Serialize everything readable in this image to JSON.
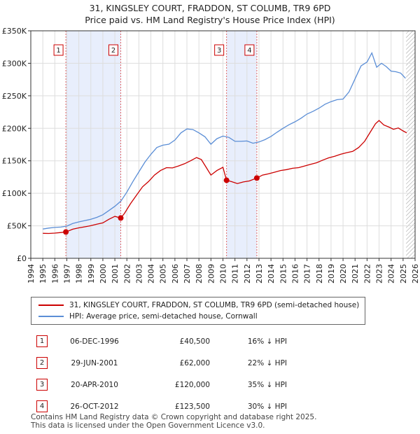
{
  "title": {
    "line1": "31, KINGSLEY COURT, FRADDON, ST COLUMB, TR9 6PD",
    "line2": "Price paid vs. HM Land Registry's House Price Index (HPI)"
  },
  "chart_data": {
    "type": "line",
    "title": "31, KINGSLEY COURT, FRADDON, ST COLUMB, TR9 6PD - Price paid vs. HM Land Registry's House Price Index (HPI)",
    "xlabel": "",
    "ylabel": "",
    "xlim": [
      1994,
      2026
    ],
    "ylim": [
      0,
      350000
    ],
    "grid": true,
    "x_ticks": [
      1994,
      1995,
      1996,
      1997,
      1998,
      1999,
      2000,
      2001,
      2002,
      2003,
      2004,
      2005,
      2006,
      2007,
      2008,
      2009,
      2010,
      2011,
      2012,
      2013,
      2014,
      2015,
      2016,
      2017,
      2018,
      2019,
      2020,
      2021,
      2022,
      2023,
      2024,
      2025,
      2026
    ],
    "x_tick_labels": [
      "1994",
      "1995",
      "1996",
      "1997",
      "1998",
      "1999",
      "2000",
      "2001",
      "2002",
      "2003",
      "2004",
      "2005",
      "2006",
      "2007",
      "2008",
      "2009",
      "2010",
      "2011",
      "2012",
      "2013",
      "2014",
      "2015",
      "2016",
      "2017",
      "2018",
      "2019",
      "2020",
      "2021",
      "2022",
      "2023",
      "2024",
      "2025",
      "2026"
    ],
    "y_ticks": [
      0,
      50000,
      100000,
      150000,
      200000,
      250000,
      300000,
      350000
    ],
    "y_tick_labels": [
      "£0",
      "£50K",
      "£100K",
      "£150K",
      "£200K",
      "£250K",
      "£300K",
      "£350K"
    ],
    "shaded_ranges": [
      [
        1996.92,
        2001.49
      ],
      [
        2010.3,
        2012.82
      ]
    ],
    "forecast_hatch_from": 2025.25,
    "series": [
      {
        "name": "31, KINGSLEY COURT, FRADDON, ST COLUMB, TR9 6PD (semi-detached house)",
        "color": "#cc0000",
        "x": [
          1995.0,
          1995.5,
          1996.0,
          1996.5,
          1996.92,
          1997.5,
          1998.0,
          1998.5,
          1999.0,
          1999.5,
          2000.0,
          2000.5,
          2001.0,
          2001.49,
          2001.8,
          2002.3,
          2002.8,
          2003.3,
          2003.8,
          2004.3,
          2004.8,
          2005.3,
          2005.8,
          2006.3,
          2006.8,
          2007.3,
          2007.8,
          2008.2,
          2008.6,
          2009.0,
          2009.5,
          2010.0,
          2010.3,
          2010.7,
          2011.2,
          2011.7,
          2012.2,
          2012.82,
          2013.3,
          2013.8,
          2014.3,
          2014.8,
          2015.3,
          2015.8,
          2016.3,
          2016.8,
          2017.3,
          2017.8,
          2018.3,
          2018.8,
          2019.3,
          2019.8,
          2020.3,
          2020.8,
          2021.3,
          2021.8,
          2022.3,
          2022.7,
          2023.0,
          2023.4,
          2023.8,
          2024.2,
          2024.6,
          2025.0,
          2025.3
        ],
        "values": [
          38500,
          38200,
          38800,
          39600,
          40500,
          44800,
          46800,
          48500,
          50200,
          52500,
          54500,
          60000,
          64500,
          62000,
          69000,
          84000,
          97000,
          110000,
          118000,
          128000,
          135000,
          139500,
          139000,
          142000,
          145500,
          150000,
          155000,
          152000,
          140000,
          128000,
          135000,
          140000,
          120000,
          118000,
          115000,
          117500,
          119000,
          123500,
          128000,
          130000,
          132500,
          135000,
          136500,
          138500,
          139500,
          142000,
          144500,
          147000,
          151000,
          154500,
          157000,
          160000,
          162500,
          164500,
          170500,
          180000,
          195000,
          207000,
          212000,
          205000,
          202000,
          198500,
          200500,
          196000,
          193000
        ]
      },
      {
        "name": "HPI: Average price, semi-detached house, Cornwall",
        "color": "#5b8ed6",
        "x": [
          1995.0,
          1995.5,
          1996.0,
          1996.5,
          1997.0,
          1997.5,
          1998.0,
          1998.5,
          1999.0,
          1999.5,
          2000.0,
          2000.5,
          2001.0,
          2001.5,
          2002.0,
          2002.5,
          2003.0,
          2003.5,
          2004.0,
          2004.5,
          2005.0,
          2005.5,
          2006.0,
          2006.5,
          2007.0,
          2007.5,
          2008.0,
          2008.5,
          2009.0,
          2009.5,
          2010.0,
          2010.5,
          2011.0,
          2011.5,
          2012.0,
          2012.5,
          2013.0,
          2013.5,
          2014.0,
          2014.5,
          2015.0,
          2015.5,
          2016.0,
          2016.5,
          2017.0,
          2017.5,
          2018.0,
          2018.5,
          2019.0,
          2019.5,
          2020.0,
          2020.5,
          2021.0,
          2021.5,
          2022.0,
          2022.4,
          2022.8,
          2023.2,
          2023.6,
          2024.0,
          2024.4,
          2024.8,
          2025.2
        ],
        "values": [
          45000,
          46500,
          47500,
          48000,
          49500,
          53500,
          56000,
          58000,
          60000,
          63000,
          67000,
          73500,
          80000,
          88000,
          102000,
          118000,
          133000,
          148000,
          160000,
          170500,
          174000,
          175500,
          182000,
          193000,
          199000,
          198000,
          193000,
          187000,
          175500,
          184000,
          188000,
          186000,
          180000,
          180000,
          180500,
          177000,
          179000,
          182500,
          187500,
          194000,
          200000,
          205500,
          210000,
          215500,
          222000,
          226000,
          231000,
          237000,
          241000,
          244000,
          245000,
          256000,
          276000,
          296000,
          302000,
          316000,
          294000,
          300000,
          295000,
          288000,
          287000,
          285000,
          277000
        ]
      }
    ],
    "sales": [
      {
        "label": "1",
        "x": 1996.92,
        "value": 40500
      },
      {
        "label": "2",
        "x": 2001.49,
        "value": 62000
      },
      {
        "label": "3",
        "x": 2010.3,
        "value": 120000
      },
      {
        "label": "4",
        "x": 2012.82,
        "value": 123500
      }
    ]
  },
  "legend": {
    "item1": "31, KINGSLEY COURT, FRADDON, ST COLUMB, TR9 6PD (semi-detached house)",
    "item2": "HPI: Average price, semi-detached house, Cornwall"
  },
  "transactions": [
    {
      "num": "1",
      "date": "06-DEC-1996",
      "price": "£40,500",
      "hpi": "16% ↓ HPI"
    },
    {
      "num": "2",
      "date": "29-JUN-2001",
      "price": "£62,000",
      "hpi": "22% ↓ HPI"
    },
    {
      "num": "3",
      "date": "20-APR-2010",
      "price": "£120,000",
      "hpi": "35% ↓ HPI"
    },
    {
      "num": "4",
      "date": "26-OCT-2012",
      "price": "£123,500",
      "hpi": "30% ↓ HPI"
    }
  ],
  "footer": {
    "line1": "Contains HM Land Registry data © Crown copyright and database right 2025.",
    "line2": "This data is licensed under the Open Government Licence v3.0."
  },
  "colors": {
    "property": "#cc0000",
    "hpi": "#5b8ed6",
    "shade": "#e8eefc",
    "grid": "#dddddd"
  }
}
